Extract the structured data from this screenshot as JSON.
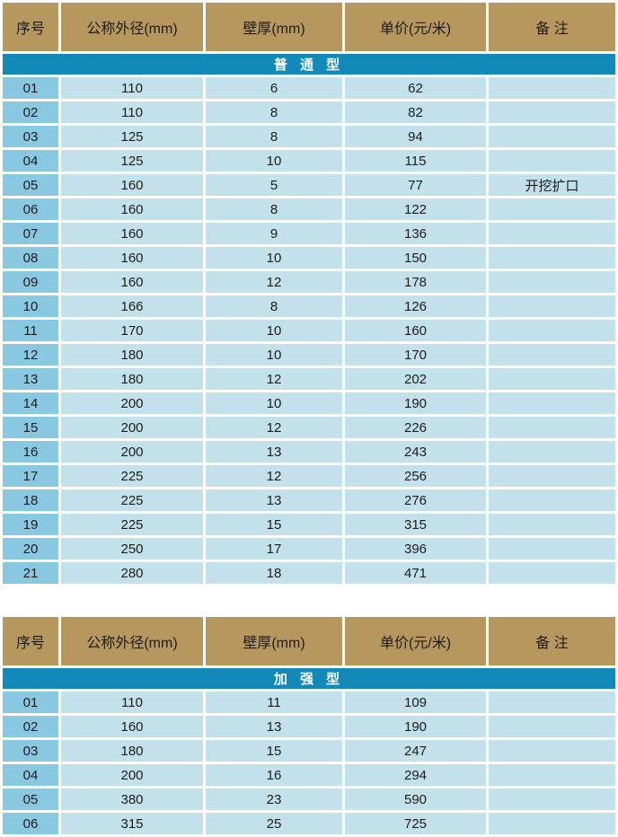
{
  "colors": {
    "header_bg": "#b6985e",
    "header_text": "#211c12",
    "section_bg": "#1389b9",
    "section_text": "#ffffff",
    "index_cell_bg": "#88c8e1",
    "data_cell_bg": "#c3e1ea",
    "cell_text": "#1c1c1c",
    "separator": "#ffffff"
  },
  "tables": [
    {
      "headers": [
        "序号",
        "公称外径(mm)",
        "壁厚(mm)",
        "单价(元/米)",
        "备 注"
      ],
      "section": "普 通 型",
      "rows": [
        [
          "01",
          "110",
          "6",
          "62",
          ""
        ],
        [
          "02",
          "110",
          "8",
          "82",
          ""
        ],
        [
          "03",
          "125",
          "8",
          "94",
          ""
        ],
        [
          "04",
          "125",
          "10",
          "115",
          ""
        ],
        [
          "05",
          "160",
          "5",
          "77",
          "开挖扩口"
        ],
        [
          "06",
          "160",
          "8",
          "122",
          ""
        ],
        [
          "07",
          "160",
          "9",
          "136",
          ""
        ],
        [
          "08",
          "160",
          "10",
          "150",
          ""
        ],
        [
          "09",
          "160",
          "12",
          "178",
          ""
        ],
        [
          "10",
          "166",
          "8",
          "126",
          ""
        ],
        [
          "11",
          "170",
          "10",
          "160",
          ""
        ],
        [
          "12",
          "180",
          "10",
          "170",
          ""
        ],
        [
          "13",
          "180",
          "12",
          "202",
          ""
        ],
        [
          "14",
          "200",
          "10",
          "190",
          ""
        ],
        [
          "15",
          "200",
          "12",
          "226",
          ""
        ],
        [
          "16",
          "200",
          "13",
          "243",
          ""
        ],
        [
          "17",
          "225",
          "12",
          "256",
          ""
        ],
        [
          "18",
          "225",
          "13",
          "276",
          ""
        ],
        [
          "19",
          "225",
          "15",
          "315",
          ""
        ],
        [
          "20",
          "250",
          "17",
          "396",
          ""
        ],
        [
          "21",
          "280",
          "18",
          "471",
          ""
        ]
      ]
    },
    {
      "headers": [
        "序号",
        "公称外径(mm)",
        "壁厚(mm)",
        "单价(元/米)",
        "备 注"
      ],
      "section": "加 强 型",
      "rows": [
        [
          "01",
          "110",
          "11",
          "109",
          ""
        ],
        [
          "02",
          "160",
          "13",
          "190",
          ""
        ],
        [
          "03",
          "180",
          "15",
          "247",
          ""
        ],
        [
          "04",
          "200",
          "16",
          "294",
          ""
        ],
        [
          "05",
          "380",
          "23",
          "590",
          ""
        ],
        [
          "06",
          "315",
          "25",
          "725",
          ""
        ]
      ]
    }
  ]
}
